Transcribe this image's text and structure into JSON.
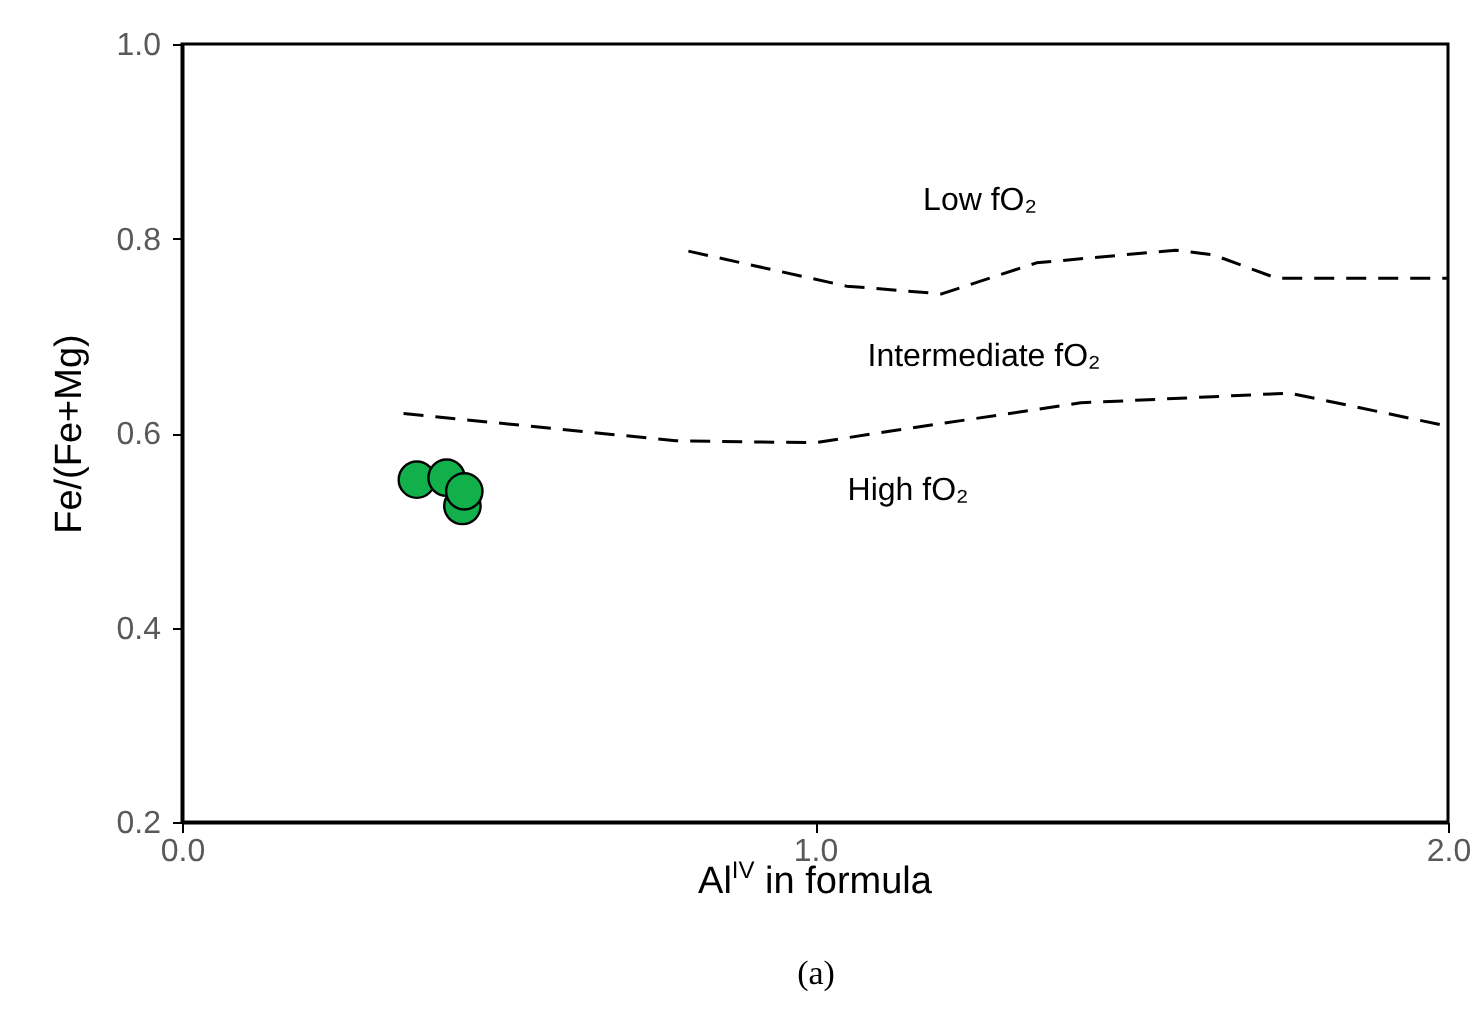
{
  "chart_data": {
    "type": "scatter",
    "xlabel": "Al$^{IV}$ in formula",
    "ylabel": "Fe/(Fe+Mg)",
    "xlim": [
      0,
      2
    ],
    "ylim": [
      0.2,
      1.0
    ],
    "xticks": [
      {
        "value": 0,
        "label": "0.0"
      },
      {
        "value": 1,
        "label": "1.0"
      },
      {
        "value": 2,
        "label": "2.0"
      }
    ],
    "yticks": [
      {
        "value": 0.2,
        "label": "0.2"
      },
      {
        "value": 0.4,
        "label": "0.4"
      },
      {
        "value": 0.6,
        "label": "0.6"
      },
      {
        "value": 0.8,
        "label": "0.8"
      },
      {
        "value": 1.0,
        "label": "1.0"
      }
    ],
    "grid": false,
    "series": [
      {
        "type": "line",
        "color": "#000000",
        "line_style": "dashed",
        "x": [
          0.8,
          1.05,
          1.2,
          1.35,
          1.57,
          1.63,
          1.73,
          2.0
        ],
        "values": [
          0.787,
          0.751,
          0.743,
          0.775,
          0.788,
          0.783,
          0.759,
          0.759
        ]
      },
      {
        "type": "line",
        "color": "#000000",
        "line_style": "dashed",
        "x": [
          0.35,
          0.78,
          1.0,
          1.12,
          1.42,
          1.75,
          2.0
        ],
        "values": [
          0.62,
          0.592,
          0.59,
          0.602,
          0.631,
          0.641,
          0.607
        ]
      },
      {
        "color": "#12b04b",
        "marker": "circle",
        "x": [
          0.371,
          0.418,
          0.443,
          0.446
        ],
        "values": [
          0.552,
          0.554,
          0.525,
          0.54
        ]
      }
    ],
    "annotations": [
      "Low fO₂",
      "Intermediate fO₂",
      "High fO₂",
      "(a)"
    ]
  }
}
